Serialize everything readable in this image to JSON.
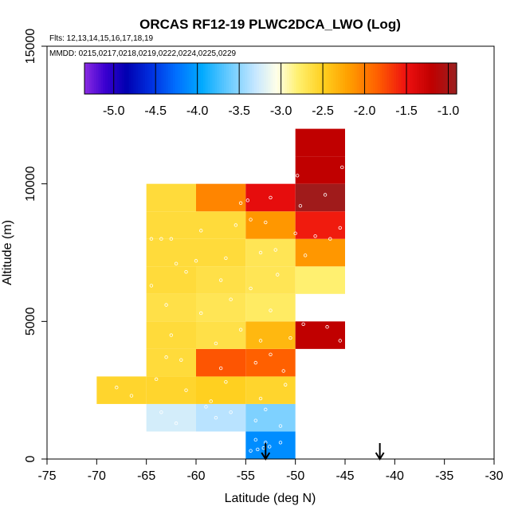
{
  "chart_data": {
    "type": "heatmap",
    "title": "ORCAS RF12-19 PLWC2DCA_LWO (Log)",
    "flights_note": "Flts: 12,13,14,15,16,17,18,19",
    "dates_note": "MMDD: 0215,0217,0218,0219,0222,0224,0225,0229",
    "xlabel": "Latitude (deg N)",
    "ylabel": "Altitude (m)",
    "xlim": [
      -75,
      -30
    ],
    "ylim": [
      0,
      15000
    ],
    "x_ticks": [
      -75,
      -70,
      -65,
      -60,
      -55,
      -50,
      -45,
      -40,
      -35,
      -30
    ],
    "x_tick_labels": [
      "-75",
      "-70",
      "-65",
      "-60",
      "-55",
      "-50",
      "-45",
      "-40",
      "-35",
      "-30"
    ],
    "y_ticks": [
      0,
      5000,
      10000,
      15000
    ],
    "y_tick_labels": [
      "0",
      "5000",
      "10000",
      "15000"
    ],
    "colorbar": {
      "range": [
        -5.35,
        -0.9
      ],
      "ticks": [
        -5.0,
        -4.5,
        -4.0,
        -3.5,
        -3.0,
        -2.5,
        -2.0,
        -1.5,
        -1.0
      ],
      "tick_labels": [
        "-5.0",
        "-4.5",
        "-4.0",
        "-3.5",
        "-3.0",
        "-2.5",
        "-2.0",
        "-1.5",
        "-1.0"
      ],
      "stops": [
        {
          "v": -5.35,
          "color": "#8a2be2"
        },
        {
          "v": -5.1,
          "color": "#3a00d0"
        },
        {
          "v": -4.85,
          "color": "#0000b0"
        },
        {
          "v": -4.55,
          "color": "#0030e0"
        },
        {
          "v": -4.25,
          "color": "#0070ff"
        },
        {
          "v": -3.95,
          "color": "#00aaff"
        },
        {
          "v": -3.65,
          "color": "#60c8ff"
        },
        {
          "v": -3.3,
          "color": "#c8e8ff"
        },
        {
          "v": -3.05,
          "color": "#ffffe8"
        },
        {
          "v": -2.8,
          "color": "#fff070"
        },
        {
          "v": -2.5,
          "color": "#ffd020"
        },
        {
          "v": -2.2,
          "color": "#ffa000"
        },
        {
          "v": -1.85,
          "color": "#ff6000"
        },
        {
          "v": -1.5,
          "color": "#ee1010"
        },
        {
          "v": -1.2,
          "color": "#c00000"
        },
        {
          "v": -0.9,
          "color": "#9a2020"
        }
      ]
    },
    "bin_size": {
      "lat": 5,
      "alt": 1000
    },
    "cells": [
      {
        "lat": -55,
        "alt": 0,
        "value": -4.1
      },
      {
        "lat": -65,
        "alt": 1000,
        "value": -3.25
      },
      {
        "lat": -60,
        "alt": 1000,
        "value": -3.35
      },
      {
        "lat": -55,
        "alt": 1000,
        "value": -3.55
      },
      {
        "lat": -70,
        "alt": 2000,
        "value": -2.55
      },
      {
        "lat": -65,
        "alt": 2000,
        "value": -2.55
      },
      {
        "lat": -60,
        "alt": 2000,
        "value": -2.5
      },
      {
        "lat": -55,
        "alt": 2000,
        "value": -2.55
      },
      {
        "lat": -65,
        "alt": 3000,
        "value": -2.6
      },
      {
        "lat": -60,
        "alt": 3000,
        "value": -1.8
      },
      {
        "lat": -55,
        "alt": 3000,
        "value": -1.85
      },
      {
        "lat": -65,
        "alt": 4000,
        "value": -2.6
      },
      {
        "lat": -60,
        "alt": 4000,
        "value": -2.65
      },
      {
        "lat": -55,
        "alt": 4000,
        "value": -2.35
      },
      {
        "lat": -50,
        "alt": 4000,
        "value": -1.2
      },
      {
        "lat": -65,
        "alt": 5000,
        "value": -2.65
      },
      {
        "lat": -60,
        "alt": 5000,
        "value": -2.7
      },
      {
        "lat": -55,
        "alt": 5000,
        "value": -2.75
      },
      {
        "lat": -65,
        "alt": 6000,
        "value": -2.6
      },
      {
        "lat": -60,
        "alt": 6000,
        "value": -2.65
      },
      {
        "lat": -55,
        "alt": 6000,
        "value": -2.7
      },
      {
        "lat": -50,
        "alt": 6000,
        "value": -2.8
      },
      {
        "lat": -65,
        "alt": 7000,
        "value": -2.6
      },
      {
        "lat": -60,
        "alt": 7000,
        "value": -2.6
      },
      {
        "lat": -55,
        "alt": 7000,
        "value": -2.7
      },
      {
        "lat": -50,
        "alt": 7000,
        "value": -2.15
      },
      {
        "lat": -65,
        "alt": 8000,
        "value": -2.6
      },
      {
        "lat": -60,
        "alt": 8000,
        "value": -2.6
      },
      {
        "lat": -55,
        "alt": 8000,
        "value": -2.15
      },
      {
        "lat": -50,
        "alt": 8000,
        "value": -1.55
      },
      {
        "lat": -65,
        "alt": 9000,
        "value": -2.6
      },
      {
        "lat": -60,
        "alt": 9000,
        "value": -2.05
      },
      {
        "lat": -55,
        "alt": 9000,
        "value": -1.45
      },
      {
        "lat": -50,
        "alt": 9000,
        "value": -0.95
      },
      {
        "lat": -50,
        "alt": 10000,
        "value": -1.2
      },
      {
        "lat": -50,
        "alt": 11000,
        "value": -1.2
      }
    ],
    "observations": [
      {
        "lat": -54.5,
        "alt": 300
      },
      {
        "lat": -53.8,
        "alt": 350
      },
      {
        "lat": -53.2,
        "alt": 400
      },
      {
        "lat": -52.6,
        "alt": 450
      },
      {
        "lat": -53.0,
        "alt": 600
      },
      {
        "lat": -54.0,
        "alt": 700
      },
      {
        "lat": -51.5,
        "alt": 600
      },
      {
        "lat": -62.0,
        "alt": 1300
      },
      {
        "lat": -58.0,
        "alt": 1500
      },
      {
        "lat": -56.5,
        "alt": 1700
      },
      {
        "lat": -54.0,
        "alt": 1400
      },
      {
        "lat": -53.0,
        "alt": 1800
      },
      {
        "lat": -51.5,
        "alt": 1200
      },
      {
        "lat": -59.0,
        "alt": 1900
      },
      {
        "lat": -63.5,
        "alt": 1700
      },
      {
        "lat": -68.0,
        "alt": 2600
      },
      {
        "lat": -66.5,
        "alt": 2300
      },
      {
        "lat": -61.0,
        "alt": 2500
      },
      {
        "lat": -57.0,
        "alt": 2800
      },
      {
        "lat": -53.5,
        "alt": 2200
      },
      {
        "lat": -51.0,
        "alt": 2700
      },
      {
        "lat": -64.0,
        "alt": 2900
      },
      {
        "lat": -58.5,
        "alt": 2100
      },
      {
        "lat": -61.5,
        "alt": 3600
      },
      {
        "lat": -57.5,
        "alt": 3300
      },
      {
        "lat": -54.0,
        "alt": 3500
      },
      {
        "lat": -52.5,
        "alt": 3800
      },
      {
        "lat": -51.2,
        "alt": 3200
      },
      {
        "lat": -63.0,
        "alt": 3700
      },
      {
        "lat": -62.5,
        "alt": 4500
      },
      {
        "lat": -58.0,
        "alt": 4200
      },
      {
        "lat": -55.5,
        "alt": 4700
      },
      {
        "lat": -53.5,
        "alt": 4300
      },
      {
        "lat": -50.5,
        "alt": 4400
      },
      {
        "lat": -49.2,
        "alt": 4900
      },
      {
        "lat": -46.8,
        "alt": 4800
      },
      {
        "lat": -45.5,
        "alt": 4300
      },
      {
        "lat": -63.0,
        "alt": 5600
      },
      {
        "lat": -59.5,
        "alt": 5300
      },
      {
        "lat": -56.5,
        "alt": 5800
      },
      {
        "lat": -52.5,
        "alt": 5400
      },
      {
        "lat": -64.5,
        "alt": 6300
      },
      {
        "lat": -61.0,
        "alt": 6800
      },
      {
        "lat": -57.5,
        "alt": 6500
      },
      {
        "lat": -54.5,
        "alt": 6200
      },
      {
        "lat": -51.8,
        "alt": 6700
      },
      {
        "lat": -62.0,
        "alt": 7100
      },
      {
        "lat": -60.0,
        "alt": 7200
      },
      {
        "lat": -57.0,
        "alt": 7300
      },
      {
        "lat": -53.5,
        "alt": 7500
      },
      {
        "lat": -52.0,
        "alt": 7600
      },
      {
        "lat": -49.0,
        "alt": 7400
      },
      {
        "lat": -64.5,
        "alt": 8000
      },
      {
        "lat": -63.5,
        "alt": 8000
      },
      {
        "lat": -62.5,
        "alt": 8000
      },
      {
        "lat": -59.5,
        "alt": 8300
      },
      {
        "lat": -56.0,
        "alt": 8500
      },
      {
        "lat": -54.5,
        "alt": 8700
      },
      {
        "lat": -53.0,
        "alt": 8600
      },
      {
        "lat": -50.0,
        "alt": 8200
      },
      {
        "lat": -48.0,
        "alt": 8100
      },
      {
        "lat": -46.5,
        "alt": 8000
      },
      {
        "lat": -45.5,
        "alt": 8400
      },
      {
        "lat": -55.5,
        "alt": 9300
      },
      {
        "lat": -54.8,
        "alt": 9400
      },
      {
        "lat": -52.5,
        "alt": 9500
      },
      {
        "lat": -49.5,
        "alt": 9200
      },
      {
        "lat": -47.0,
        "alt": 9600
      },
      {
        "lat": -49.8,
        "alt": 10300
      },
      {
        "lat": -45.3,
        "alt": 10600
      }
    ],
    "arrows_lat": [
      -53.0,
      -41.5
    ]
  }
}
